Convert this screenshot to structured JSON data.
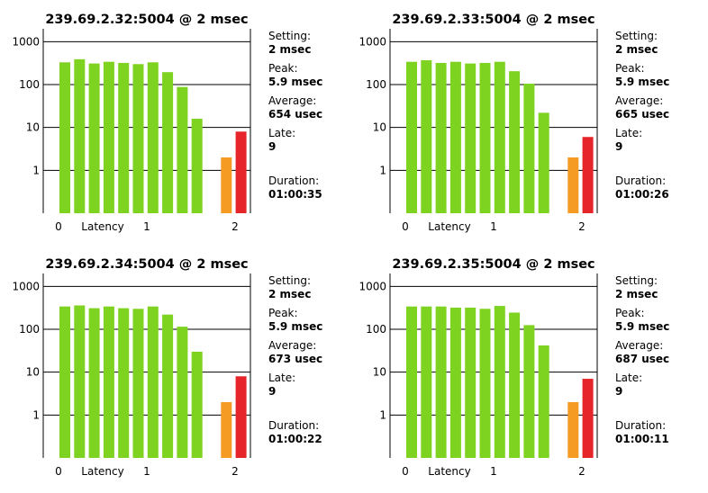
{
  "stat_labels": {
    "setting": "Setting:",
    "peak": "Peak:",
    "average": "Average:",
    "late": "Late:",
    "duration": "Duration:"
  },
  "colors": {
    "normal": "#7ed321",
    "warning": "#f59a23",
    "late": "#e5252a",
    "grid": "#000000"
  },
  "chart_data": [
    {
      "type": "bar",
      "title": "239.69.2.32:5004 @ 2 msec",
      "xlabel": "Latency",
      "ylabel": "",
      "yscale": "log",
      "ylim": [
        0.1,
        2000
      ],
      "yticks": [
        "1000",
        "100",
        "10",
        "1"
      ],
      "yticks_values": [
        1000,
        100,
        10,
        1
      ],
      "xticks": [
        "0",
        "1",
        "2"
      ],
      "values": [
        330,
        390,
        310,
        340,
        320,
        300,
        330,
        195,
        88,
        16,
        0,
        2,
        8
      ],
      "bar_types": [
        "normal",
        "normal",
        "normal",
        "normal",
        "normal",
        "normal",
        "normal",
        "normal",
        "normal",
        "normal",
        "empty",
        "warning",
        "late"
      ],
      "stats": {
        "setting": "2 msec",
        "peak": "5.9 msec",
        "average": "654 usec",
        "late": "9",
        "duration": "01:00:35"
      }
    },
    {
      "type": "bar",
      "title": "239.69.2.33:5004 @ 2 msec",
      "xlabel": "Latency",
      "ylabel": "",
      "yscale": "log",
      "ylim": [
        0.1,
        2000
      ],
      "yticks": [
        "1000",
        "100",
        "10",
        "1"
      ],
      "yticks_values": [
        1000,
        100,
        10,
        1
      ],
      "xticks": [
        "0",
        "1",
        "2"
      ],
      "values": [
        340,
        370,
        320,
        340,
        310,
        320,
        340,
        205,
        105,
        22,
        0,
        2,
        6
      ],
      "bar_types": [
        "normal",
        "normal",
        "normal",
        "normal",
        "normal",
        "normal",
        "normal",
        "normal",
        "normal",
        "normal",
        "empty",
        "warning",
        "late"
      ],
      "stats": {
        "setting": "2 msec",
        "peak": "5.9 msec",
        "average": "665 usec",
        "late": "9",
        "duration": "01:00:26"
      }
    },
    {
      "type": "bar",
      "title": "239.69.2.34:5004 @ 2 msec",
      "xlabel": "Latency",
      "ylabel": "",
      "yscale": "log",
      "ylim": [
        0.1,
        2000
      ],
      "yticks": [
        "1000",
        "100",
        "10",
        "1"
      ],
      "yticks_values": [
        1000,
        100,
        10,
        1
      ],
      "xticks": [
        "0",
        "1",
        "2"
      ],
      "values": [
        340,
        360,
        310,
        340,
        310,
        300,
        340,
        220,
        115,
        30,
        0,
        2,
        8
      ],
      "bar_types": [
        "normal",
        "normal",
        "normal",
        "normal",
        "normal",
        "normal",
        "normal",
        "normal",
        "normal",
        "normal",
        "empty",
        "warning",
        "late"
      ],
      "stats": {
        "setting": "2 msec",
        "peak": "5.9 msec",
        "average": "673 usec",
        "late": "9",
        "duration": "01:00:22"
      }
    },
    {
      "type": "bar",
      "title": "239.69.2.35:5004 @ 2 msec",
      "xlabel": "Latency",
      "ylabel": "",
      "yscale": "log",
      "ylim": [
        0.1,
        2000
      ],
      "yticks": [
        "1000",
        "100",
        "10",
        "1"
      ],
      "yticks_values": [
        1000,
        100,
        10,
        1
      ],
      "xticks": [
        "0",
        "1",
        "2"
      ],
      "values": [
        340,
        340,
        340,
        320,
        320,
        300,
        350,
        245,
        125,
        42,
        0,
        2,
        7
      ],
      "bar_types": [
        "normal",
        "normal",
        "normal",
        "normal",
        "normal",
        "normal",
        "normal",
        "normal",
        "normal",
        "normal",
        "empty",
        "warning",
        "late"
      ],
      "stats": {
        "setting": "2 msec",
        "peak": "5.9 msec",
        "average": "687 usec",
        "late": "9",
        "duration": "01:00:11"
      }
    }
  ]
}
